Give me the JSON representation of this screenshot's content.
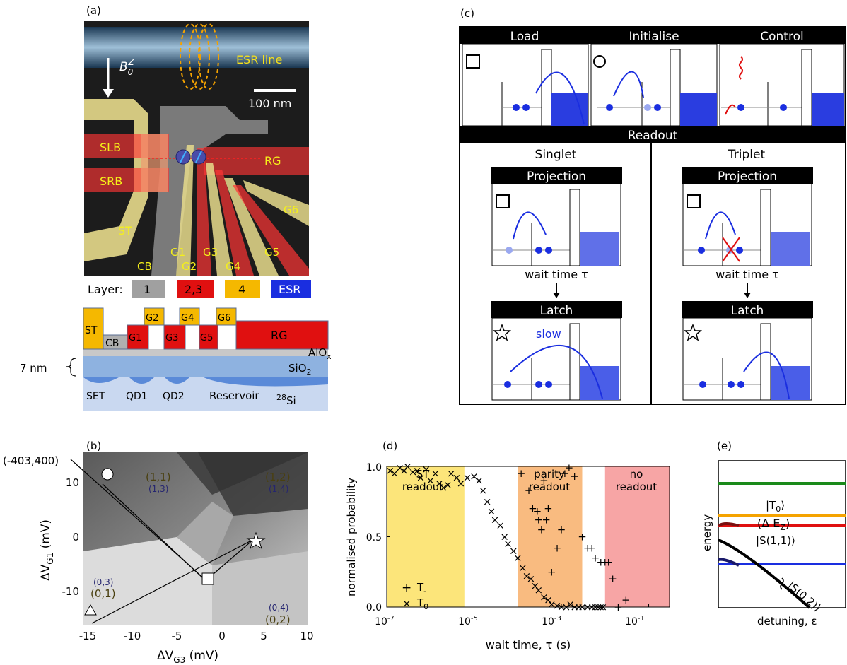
{
  "panels": {
    "a": "(a)",
    "b": "(b)",
    "c": "(c)",
    "d": "(d)",
    "e": "(e)"
  },
  "panel_a": {
    "field_label": "B",
    "field_sub": "0",
    "field_sup": "Z",
    "esr_line": "ESR line",
    "scale_bar": "100 nm",
    "gate_labels": [
      "SLB",
      "SRB",
      "RG",
      "G6",
      "ST",
      "G1",
      "G3",
      "G5",
      "CB",
      "G2",
      "G4"
    ],
    "layer_legend": {
      "title": "Layer:",
      "items": [
        {
          "label": "1",
          "color": "#a0a0a0"
        },
        {
          "label": "2,3",
          "color": "#e01010"
        },
        {
          "label": "4",
          "color": "#f5b800"
        },
        {
          "label": "ESR",
          "color": "#1a2ee0"
        }
      ]
    },
    "cross_section": {
      "gates": [
        "ST",
        "CB",
        "G1",
        "G2",
        "G3",
        "G4",
        "G5",
        "G6",
        "RG"
      ],
      "alox": "AlO",
      "alox_sub": "x",
      "sio2": "SiO",
      "sio2_sub": "2",
      "thickness": "7 nm",
      "regions": [
        "SET",
        "QD1",
        "QD2",
        "Reservoir"
      ],
      "substrate_sup": "28",
      "substrate": "Si"
    }
  },
  "panel_b": {
    "corner_label": "(-403,400)",
    "xlabel": "ΔV",
    "xlabel_sub": "G3",
    "xlabel_unit": " (mV)",
    "ylabel": "ΔV",
    "ylabel_sub": "G1",
    "ylabel_unit": " (mV)",
    "xticks": [
      "-15",
      "-10",
      "-5",
      "0",
      "5",
      "10"
    ],
    "yticks": [
      "10",
      "0",
      "-10"
    ],
    "charge_states": [
      {
        "top": "(1,1)",
        "bottom": "(1,3)"
      },
      {
        "top": "(1,2)",
        "bottom": "(1,4)"
      },
      {
        "top": "(0,3)",
        "bottom": "(0,1)"
      },
      {
        "top": "(0,4)",
        "bottom": "(0,2)"
      }
    ]
  },
  "panel_c": {
    "stages": [
      "Load",
      "Initialise",
      "Control"
    ],
    "readout": "Readout",
    "branches": [
      {
        "title": "Singlet",
        "projection": "Projection",
        "wait": "wait time τ",
        "latch": "Latch",
        "slow": "slow"
      },
      {
        "title": "Triplet",
        "projection": "Projection",
        "wait": "wait time τ",
        "latch": "Latch",
        "slow": ""
      }
    ]
  },
  "chart_data": [
    {
      "type": "scatter",
      "xlabel": "wait time, τ (s)",
      "ylabel": "normalised probability",
      "xscale": "log",
      "xlim": [
        1e-07,
        0.3
      ],
      "ylim": [
        0,
        1
      ],
      "xticks": [
        "10",
        "10",
        "10",
        "10"
      ],
      "xtick_exps": [
        "-7",
        "-5",
        "-3",
        "-1"
      ],
      "yticks": [
        "0.0",
        "0.5",
        "1.0"
      ],
      "regions": [
        {
          "label_top": "ST",
          "label_bottom": "readout",
          "x0": 1e-07,
          "x1": 6e-06,
          "color": "#fce57a"
        },
        {
          "label_top": "parity",
          "label_bottom": "readout",
          "x0": 0.0001,
          "x1": 0.003,
          "color": "#f9bb80"
        },
        {
          "label_top": "no",
          "label_bottom": "readout",
          "x0": 0.01,
          "x1": 0.3,
          "color": "#f7a5a5"
        }
      ],
      "series": [
        {
          "name": "T",
          "name_sub": "-",
          "marker": "+",
          "x": [
            0.00012,
            0.00018,
            0.00022,
            0.00028,
            0.0003,
            0.00035,
            0.0004,
            0.00045,
            0.0005,
            0.0006,
            0.0008,
            0.001,
            0.0012,
            0.0015,
            0.002,
            0.003,
            0.004,
            0.005,
            0.006,
            0.008,
            0.01,
            0.012,
            0.015,
            0.02,
            0.03
          ],
          "y": [
            0.95,
            0.83,
            0.7,
            0.68,
            0.62,
            0.55,
            0.9,
            0.62,
            0.7,
            0.25,
            0.42,
            0.55,
            0.95,
            0.99,
            0.93,
            0.5,
            0.42,
            0.42,
            0.35,
            0.32,
            0.32,
            0.32,
            0.2,
            0.0,
            0.05
          ],
          "y_alt_note": ""
        },
        {
          "name": "T",
          "name_sub": "0",
          "marker": "x",
          "x": [
            1.2e-07,
            1.5e-07,
            2e-07,
            2.5e-07,
            3e-07,
            4e-07,
            5e-07,
            6e-07,
            8e-07,
            1e-06,
            1.3e-06,
            1.6e-06,
            2e-06,
            2.5e-06,
            3e-06,
            4e-06,
            5e-06,
            7e-06,
            1e-05,
            1.3e-05,
            1.6e-05,
            2e-05,
            2.5e-05,
            3e-05,
            4e-05,
            5e-05,
            6e-05,
            8e-05,
            0.0001,
            0.00013,
            0.00016,
            0.0002,
            0.00025,
            0.0003,
            0.0004,
            0.0005,
            0.0006,
            0.0008,
            0.001,
            0.0013,
            0.0016,
            0.002,
            0.0025,
            0.003,
            0.004,
            0.005,
            0.006,
            0.007,
            0.008,
            0.009
          ],
          "y": [
            0.97,
            0.95,
            0.99,
            0.97,
            1.0,
            0.96,
            0.97,
            0.92,
            0.98,
            0.9,
            0.95,
            0.88,
            0.85,
            0.87,
            0.95,
            0.92,
            0.88,
            0.92,
            0.93,
            0.9,
            0.83,
            0.75,
            0.68,
            0.62,
            0.58,
            0.5,
            0.45,
            0.4,
            0.35,
            0.28,
            0.22,
            0.2,
            0.15,
            0.12,
            0.07,
            0.05,
            0.02,
            0.01,
            0.0,
            0.0,
            0.02,
            0.0,
            0.0,
            0.0,
            0.0,
            0.0,
            0.0,
            0.0,
            0.0,
            0.0
          ]
        }
      ]
    }
  ],
  "panel_e": {
    "ylabel": "energy",
    "xlabel": "detuning, ε",
    "t0": "|T",
    "t0_sub": "0",
    "t0_close": "⟩",
    "dez": "(Δ E",
    "dez_sub": "Z",
    "dez_close": ")",
    "s11": "|S(1,1)⟩",
    "s02": "|S(0,2)⟩"
  }
}
